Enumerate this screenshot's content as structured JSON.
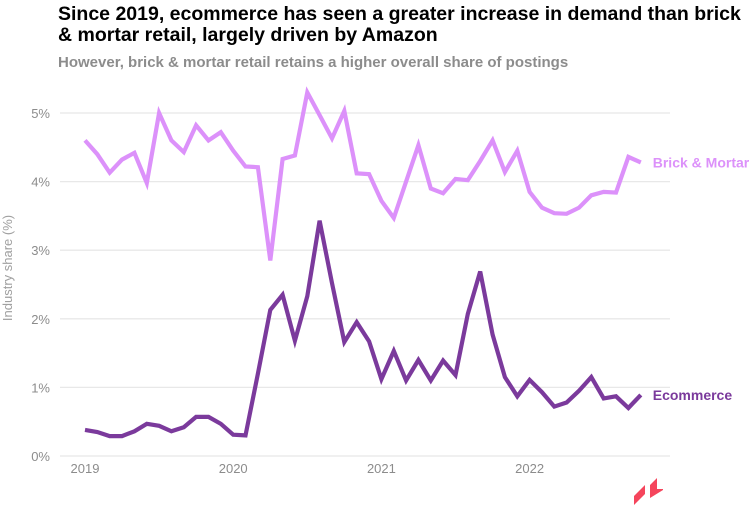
{
  "chart_data": {
    "type": "line",
    "title": "Since 2019, ecommerce has seen a greater increase in demand than brick & mortar retail, largely driven by Amazon",
    "subtitle": "However, brick & mortar retail retains a higher overall share of postings",
    "xlabel": "",
    "ylabel": "Industry share (%)",
    "ylim": [
      0,
      5.3
    ],
    "yticks": [
      0,
      1,
      2,
      3,
      4,
      5
    ],
    "ytick_labels": [
      "0%",
      "1%",
      "2%",
      "3%",
      "4%",
      "5%"
    ],
    "xticks": [
      "2019",
      "2020",
      "2021",
      "2022"
    ],
    "x_start": "2019-01",
    "x_frequency": "monthly",
    "grid": true,
    "legend": "direct labels at line ends (right)",
    "series": [
      {
        "name": "Brick & Mortar",
        "color": "#dc91fa",
        "values": [
          4.6,
          4.4,
          4.13,
          4.32,
          4.42,
          3.98,
          5.0,
          4.6,
          4.43,
          4.82,
          4.6,
          4.72,
          4.45,
          4.22,
          4.21,
          2.85,
          4.33,
          4.38,
          5.3,
          4.97,
          4.63,
          5.03,
          4.12,
          4.11,
          3.72,
          3.47,
          4.0,
          4.53,
          3.9,
          3.83,
          4.04,
          4.02,
          4.3,
          4.6,
          4.14,
          4.45,
          3.85,
          3.62,
          3.54,
          3.53,
          3.62,
          3.8,
          3.85,
          3.84,
          4.36,
          4.28
        ]
      },
      {
        "name": "Ecommerce",
        "color": "#7b3a9c",
        "values": [
          0.38,
          0.35,
          0.29,
          0.29,
          0.36,
          0.47,
          0.44,
          0.36,
          0.42,
          0.57,
          0.57,
          0.47,
          0.31,
          0.3,
          1.2,
          2.13,
          2.35,
          1.68,
          2.33,
          3.43,
          2.52,
          1.66,
          1.95,
          1.67,
          1.12,
          1.53,
          1.1,
          1.4,
          1.1,
          1.39,
          1.18,
          2.07,
          2.69,
          1.77,
          1.15,
          0.87,
          1.11,
          0.93,
          0.72,
          0.78,
          0.95,
          1.15,
          0.84,
          0.87,
          0.7,
          0.89
        ]
      }
    ]
  },
  "logo_color": "#f5455c"
}
